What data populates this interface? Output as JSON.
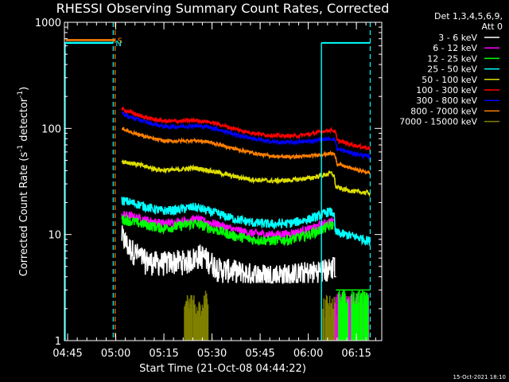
{
  "chart_data": {
    "type": "line",
    "title": "RHESSI Observing Summary Count Rates, Corrected",
    "xlabel": "Start Time (21-Oct-08 04:44:22)",
    "ylabel": "Corrected Count Rate (s⁻¹ detector⁻¹)",
    "ylabel_parts": [
      "Corrected Count Rate (s",
      "-1",
      " detector",
      "-1",
      ")"
    ],
    "yscale": "log",
    "ylim": [
      1,
      1000
    ],
    "xlim_minutes": [
      -0.4,
      98.5
    ],
    "yticks": [
      {
        "v": 1,
        "label": "1"
      },
      {
        "v": 10,
        "label": "10"
      },
      {
        "v": 100,
        "label": "100"
      },
      {
        "v": 1000,
        "label": "1000"
      }
    ],
    "xticks": [
      {
        "t": 0.6,
        "label": "04:45"
      },
      {
        "t": 15.6,
        "label": "05:00"
      },
      {
        "t": 30.6,
        "label": "05:15"
      },
      {
        "t": 45.6,
        "label": "05:30"
      },
      {
        "t": 60.6,
        "label": "05:45"
      },
      {
        "t": 75.6,
        "label": "06:00"
      },
      {
        "t": 90.6,
        "label": "06:15"
      }
    ],
    "legend_header": [
      "Det 1,3,4,5,6,9,",
      "Att 0"
    ],
    "footer_date": "15-Oct-2021 18:10",
    "flags": [
      {
        "label": "S",
        "color": "#ff7f00",
        "y": 680,
        "t0": 0,
        "t1": 15.4
      },
      {
        "label": "N",
        "color": "#00ffff",
        "y": 640,
        "t0": 0,
        "t1": 14.8
      }
    ],
    "night_segments": [
      {
        "t0": -0.4,
        "t1": 14.8,
        "y": 640
      },
      {
        "t0": 79.7,
        "t1": 94.9,
        "y": 640
      }
    ],
    "night_lines": [
      14.8,
      94.9
    ],
    "saa_lines": [
      15.4
    ],
    "series": [
      {
        "name": "3 - 6 keV",
        "color": "#ffffff",
        "anchors": [
          [
            17.5,
            9.5
          ],
          [
            19.5,
            7.5
          ],
          [
            22,
            6.5
          ],
          [
            25,
            5.5
          ],
          [
            30,
            5.3
          ],
          [
            34,
            5.5
          ],
          [
            38,
            5.5
          ],
          [
            42,
            6.3
          ],
          [
            45,
            5.5
          ],
          [
            48,
            4.6
          ],
          [
            52,
            4.5
          ],
          [
            56,
            4.2
          ],
          [
            62,
            4.1
          ],
          [
            70,
            4.1
          ],
          [
            78,
            4.4
          ],
          [
            82,
            4.6
          ],
          [
            83.4,
            5.0
          ]
        ]
      },
      {
        "name": "6 - 12 keV",
        "color": "#ff00ff",
        "anchors": [
          [
            17.5,
            15.5
          ],
          [
            22,
            14.5
          ],
          [
            27,
            13.3
          ],
          [
            30,
            12.8
          ],
          [
            34,
            13.0
          ],
          [
            40,
            14.0
          ],
          [
            44,
            13.2
          ],
          [
            48,
            12.3
          ],
          [
            52,
            11.2
          ],
          [
            58,
            10.3
          ],
          [
            64,
            10.0
          ],
          [
            70,
            10.2
          ],
          [
            76,
            11.2
          ],
          [
            80,
            12.5
          ],
          [
            83.5,
            13.5
          ]
        ]
      },
      {
        "name": "12 - 25 keV",
        "color": "#00ff00",
        "anchors": [
          [
            17.5,
            14.0
          ],
          [
            22,
            13.0
          ],
          [
            27,
            12.0
          ],
          [
            30,
            11.5
          ],
          [
            34,
            11.8
          ],
          [
            40,
            12.8
          ],
          [
            44,
            11.8
          ],
          [
            48,
            10.8
          ],
          [
            52,
            9.8
          ],
          [
            58,
            9.0
          ],
          [
            64,
            8.8
          ],
          [
            70,
            9.0
          ],
          [
            76,
            10.0
          ],
          [
            80,
            11.2
          ],
          [
            83.5,
            12.5
          ]
        ]
      },
      {
        "name": "25 - 50 keV",
        "color": "#00ffff",
        "anchors": [
          [
            17.5,
            21
          ],
          [
            22,
            19.5
          ],
          [
            27,
            17.5
          ],
          [
            30,
            16.8
          ],
          [
            34,
            17.0
          ],
          [
            40,
            18.2
          ],
          [
            44,
            16.8
          ],
          [
            48,
            15.5
          ],
          [
            52,
            14.2
          ],
          [
            58,
            13.0
          ],
          [
            64,
            12.5
          ],
          [
            70,
            12.8
          ],
          [
            76,
            14.0
          ],
          [
            80,
            15.5
          ],
          [
            82,
            16.5
          ],
          [
            83.5,
            16.0
          ],
          [
            84,
            10.5
          ],
          [
            87,
            10.0
          ],
          [
            90,
            9.6
          ],
          [
            93,
            9.0
          ],
          [
            94.9,
            8.7
          ]
        ]
      },
      {
        "name": "50 - 100 keV",
        "color": "#dddd00",
        "anchors": [
          [
            17.5,
            49
          ],
          [
            22,
            46
          ],
          [
            27,
            42
          ],
          [
            30,
            40.5
          ],
          [
            34,
            40.5
          ],
          [
            40,
            42.5
          ],
          [
            44,
            40.5
          ],
          [
            48,
            38
          ],
          [
            52,
            35.5
          ],
          [
            58,
            33
          ],
          [
            64,
            32
          ],
          [
            70,
            32.5
          ],
          [
            76,
            34
          ],
          [
            80,
            36
          ],
          [
            82.6,
            38
          ],
          [
            83.6,
            36
          ],
          [
            84.2,
            28
          ],
          [
            87,
            26.5
          ],
          [
            90,
            25.5
          ],
          [
            94.9,
            24.5
          ]
        ]
      },
      {
        "name": "100 - 300 keV",
        "color": "#ff0000",
        "anchors": [
          [
            17.5,
            152
          ],
          [
            20,
            143
          ],
          [
            23,
            132
          ],
          [
            27,
            122
          ],
          [
            31,
            117
          ],
          [
            35,
            117
          ],
          [
            40,
            119
          ],
          [
            44,
            116
          ],
          [
            48,
            109
          ],
          [
            52,
            100
          ],
          [
            57,
            92
          ],
          [
            62,
            87
          ],
          [
            67,
            85
          ],
          [
            72,
            85
          ],
          [
            76,
            88
          ],
          [
            80,
            94
          ],
          [
            83,
            97
          ],
          [
            84,
            93
          ],
          [
            84.6,
            77
          ],
          [
            88,
            72
          ],
          [
            91,
            68
          ],
          [
            94.9,
            65
          ]
        ]
      },
      {
        "name": "300 - 800 keV",
        "color": "#0000ff",
        "anchors": [
          [
            17.5,
            138
          ],
          [
            20,
            128
          ],
          [
            23,
            120
          ],
          [
            27,
            110
          ],
          [
            31,
            104
          ],
          [
            35,
            104
          ],
          [
            40,
            106
          ],
          [
            44,
            104
          ],
          [
            48,
            97
          ],
          [
            52,
            89
          ],
          [
            57,
            82
          ],
          [
            62,
            76
          ],
          [
            67,
            74
          ],
          [
            72,
            74
          ],
          [
            76,
            76
          ],
          [
            80,
            79
          ],
          [
            83,
            80
          ],
          [
            84,
            78
          ],
          [
            84.6,
            64
          ],
          [
            88,
            60
          ],
          [
            91,
            57
          ],
          [
            94.9,
            54
          ]
        ]
      },
      {
        "name": "800 - 7000 keV",
        "color": "#ff7f00",
        "anchors": [
          [
            17.5,
            100
          ],
          [
            20,
            93
          ],
          [
            23,
            87
          ],
          [
            27,
            80
          ],
          [
            31,
            76
          ],
          [
            35,
            76
          ],
          [
            40,
            77
          ],
          [
            44,
            75
          ],
          [
            48,
            70
          ],
          [
            52,
            65
          ],
          [
            57,
            60
          ],
          [
            62,
            56
          ],
          [
            67,
            54
          ],
          [
            72,
            54
          ],
          [
            76,
            55
          ],
          [
            80,
            57
          ],
          [
            83,
            58
          ],
          [
            84,
            56
          ],
          [
            84.6,
            46
          ],
          [
            88,
            43
          ],
          [
            91,
            40.5
          ],
          [
            94.9,
            38
          ]
        ]
      },
      {
        "name": "7000 - 15000 keV",
        "color": "#808000",
        "anchors": []
      }
    ],
    "gaps": [
      {
        "t0": 83.5,
        "t1": 84.0,
        "note": "attenuator/data gap"
      }
    ]
  }
}
